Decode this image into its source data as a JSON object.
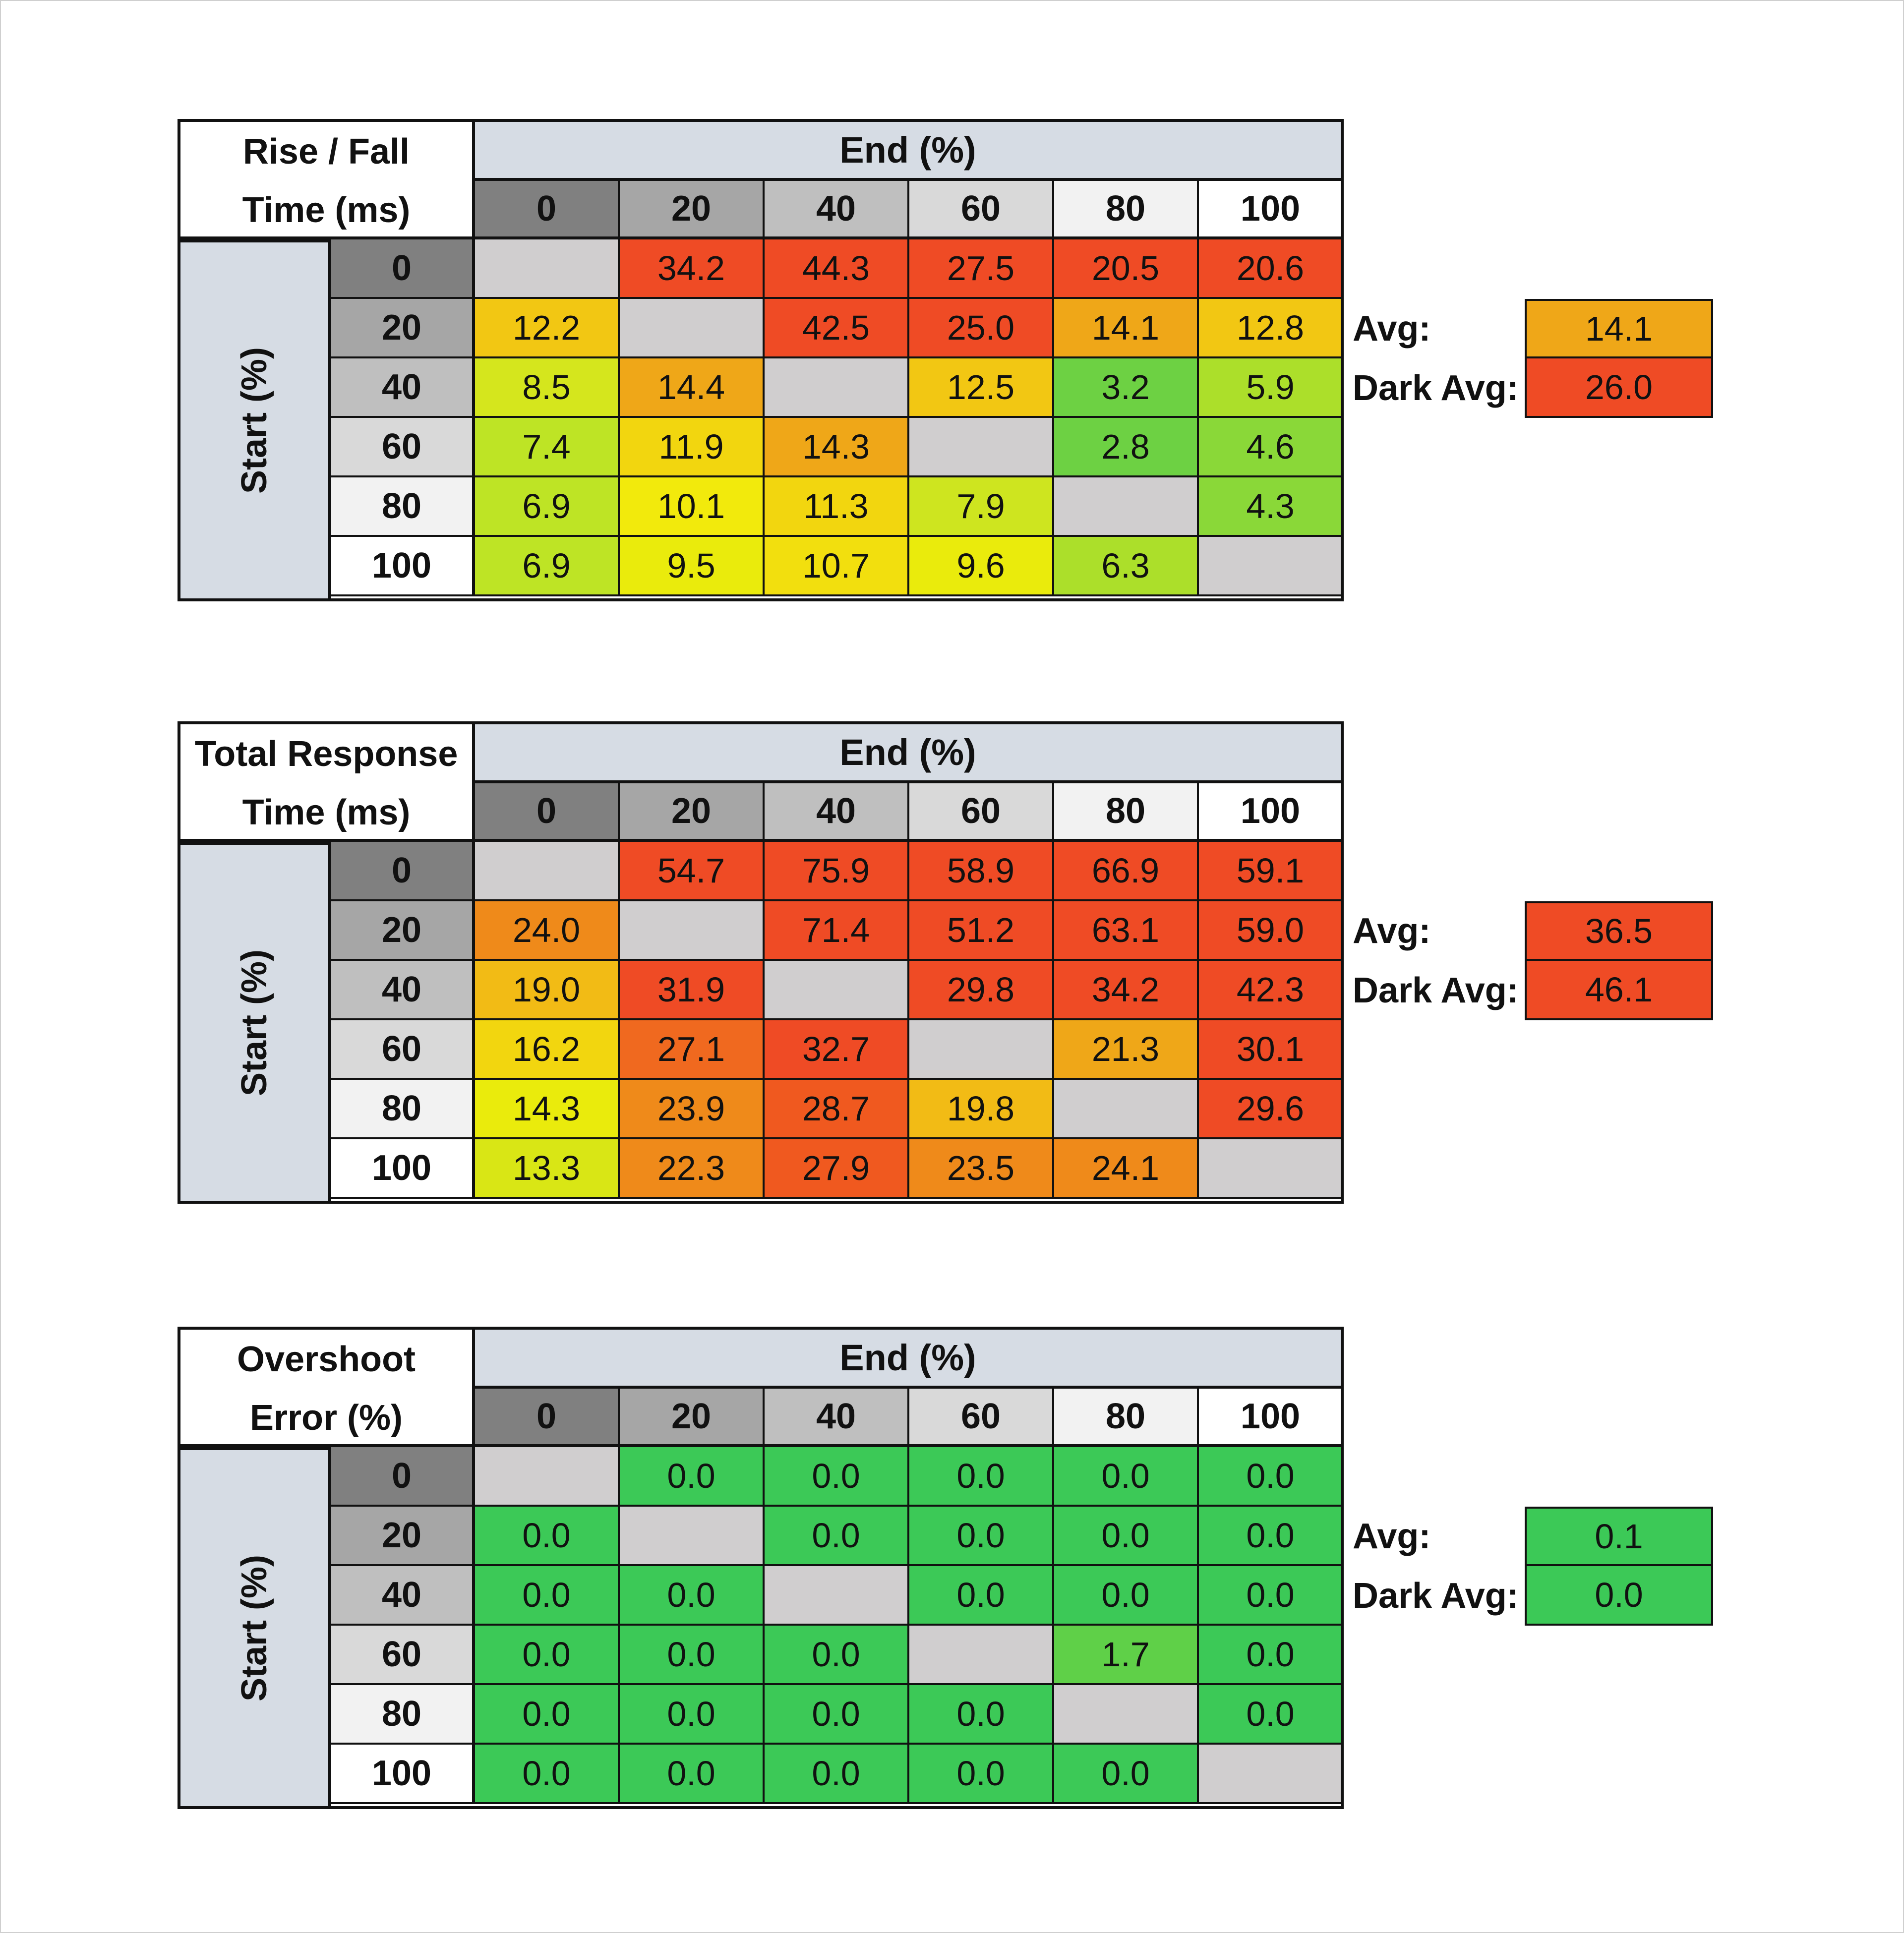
{
  "chart_data": [
    {
      "type": "heatmap",
      "title_line1": "Rise / Fall",
      "title_line2": "Time (ms)",
      "col_header": "End (%)",
      "row_header": "Start (%)",
      "levels": [
        "0",
        "20",
        "40",
        "60",
        "80",
        "100"
      ],
      "values": [
        [
          "",
          "34.2",
          "44.3",
          "27.5",
          "20.5",
          "20.6"
        ],
        [
          "12.2",
          "",
          "42.5",
          "25.0",
          "14.1",
          "12.8"
        ],
        [
          "8.5",
          "14.4",
          "",
          "12.5",
          "3.2",
          "5.9"
        ],
        [
          "7.4",
          "11.9",
          "14.3",
          "",
          "2.8",
          "4.6"
        ],
        [
          "6.9",
          "10.1",
          "11.3",
          "7.9",
          "",
          "4.3"
        ],
        [
          "6.9",
          "9.5",
          "10.7",
          "9.6",
          "6.3",
          ""
        ]
      ],
      "cell_colors": [
        [
          "#d0cecf",
          "#ef4b25",
          "#ef4b25",
          "#ef4b25",
          "#ef4b25",
          "#ef4b25"
        ],
        [
          "#f2c713",
          "#d0cecf",
          "#ef4b25",
          "#ef4b25",
          "#efa718",
          "#f2c713"
        ],
        [
          "#d5e61d",
          "#efa718",
          "#d0cecf",
          "#f2c713",
          "#6dd143",
          "#acdf2a"
        ],
        [
          "#bee425",
          "#f2d60f",
          "#efa718",
          "#d0cecf",
          "#6dd143",
          "#8ad838"
        ],
        [
          "#bee425",
          "#f2ea0c",
          "#f2d60f",
          "#cee51f",
          "#d0cecf",
          "#8ad838"
        ],
        [
          "#bee425",
          "#eaeb0c",
          "#f2df0e",
          "#eaeb0c",
          "#acdf2a",
          "#d0cecf"
        ]
      ],
      "avg_label": "Avg:",
      "avg_value": "14.1",
      "avg_color": "#efa718",
      "dark_avg_label": "Dark Avg:",
      "dark_avg_value": "26.0",
      "dark_avg_color": "#ef4b25"
    },
    {
      "type": "heatmap",
      "title_line1": "Total Response",
      "title_line2": "Time (ms)",
      "col_header": "End (%)",
      "row_header": "Start (%)",
      "levels": [
        "0",
        "20",
        "40",
        "60",
        "80",
        "100"
      ],
      "values": [
        [
          "",
          "54.7",
          "75.9",
          "58.9",
          "66.9",
          "59.1"
        ],
        [
          "24.0",
          "",
          "71.4",
          "51.2",
          "63.1",
          "59.0"
        ],
        [
          "19.0",
          "31.9",
          "",
          "29.8",
          "34.2",
          "42.3"
        ],
        [
          "16.2",
          "27.1",
          "32.7",
          "",
          "21.3",
          "30.1"
        ],
        [
          "14.3",
          "23.9",
          "28.7",
          "19.8",
          "",
          "29.6"
        ],
        [
          "13.3",
          "22.3",
          "27.9",
          "23.5",
          "24.1",
          ""
        ]
      ],
      "cell_colors": [
        [
          "#d0cecf",
          "#ef4b25",
          "#ef4b25",
          "#ef4b25",
          "#ef4b25",
          "#ef4b25"
        ],
        [
          "#ef8a1a",
          "#d0cecf",
          "#ef4b25",
          "#ef4b25",
          "#ef4b25",
          "#ef4b25"
        ],
        [
          "#f2bb15",
          "#ef4b25",
          "#d0cecf",
          "#ef4b25",
          "#ef4b25",
          "#ef4b25"
        ],
        [
          "#f2d60f",
          "#f0691f",
          "#ef4b25",
          "#d0cecf",
          "#efa718",
          "#ef4b25"
        ],
        [
          "#eaeb0c",
          "#ef8a1a",
          "#f0591f",
          "#f2bb15",
          "#d0cecf",
          "#ef4b25"
        ],
        [
          "#d9e615",
          "#ef8a1a",
          "#f0591f",
          "#ef8a1a",
          "#ef8a1a",
          "#d0cecf"
        ]
      ],
      "avg_label": "Avg:",
      "avg_value": "36.5",
      "avg_color": "#ef4b25",
      "dark_avg_label": "Dark Avg:",
      "dark_avg_value": "46.1",
      "dark_avg_color": "#ef4b25"
    },
    {
      "type": "heatmap",
      "title_line1": "Overshoot",
      "title_line2": "Error (%)",
      "col_header": "End (%)",
      "row_header": "Start (%)",
      "levels": [
        "0",
        "20",
        "40",
        "60",
        "80",
        "100"
      ],
      "values": [
        [
          "",
          "0.0",
          "0.0",
          "0.0",
          "0.0",
          "0.0"
        ],
        [
          "0.0",
          "",
          "0.0",
          "0.0",
          "0.0",
          "0.0"
        ],
        [
          "0.0",
          "0.0",
          "",
          "0.0",
          "0.0",
          "0.0"
        ],
        [
          "0.0",
          "0.0",
          "0.0",
          "",
          "1.7",
          "0.0"
        ],
        [
          "0.0",
          "0.0",
          "0.0",
          "0.0",
          "",
          "0.0"
        ],
        [
          "0.0",
          "0.0",
          "0.0",
          "0.0",
          "0.0",
          ""
        ]
      ],
      "cell_colors": [
        [
          "#d0cecf",
          "#3cc957",
          "#3cc957",
          "#3cc957",
          "#3cc957",
          "#3cc957"
        ],
        [
          "#3cc957",
          "#d0cecf",
          "#3cc957",
          "#3cc957",
          "#3cc957",
          "#3cc957"
        ],
        [
          "#3cc957",
          "#3cc957",
          "#d0cecf",
          "#3cc957",
          "#3cc957",
          "#3cc957"
        ],
        [
          "#3cc957",
          "#3cc957",
          "#3cc957",
          "#d0cecf",
          "#5fd048",
          "#3cc957"
        ],
        [
          "#3cc957",
          "#3cc957",
          "#3cc957",
          "#3cc957",
          "#d0cecf",
          "#3cc957"
        ],
        [
          "#3cc957",
          "#3cc957",
          "#3cc957",
          "#3cc957",
          "#3cc957",
          "#d0cecf"
        ]
      ],
      "avg_label": "Avg:",
      "avg_value": "0.1",
      "avg_color": "#3cc957",
      "dark_avg_label": "Dark Avg:",
      "dark_avg_value": "0.0",
      "dark_avg_color": "#3cc957"
    }
  ],
  "level_shades": [
    "#808080",
    "#a6a6a6",
    "#bfbfbf",
    "#d9d9d9",
    "#f2f2f2",
    "#ffffff"
  ],
  "header_band_color": "#d6dce4"
}
